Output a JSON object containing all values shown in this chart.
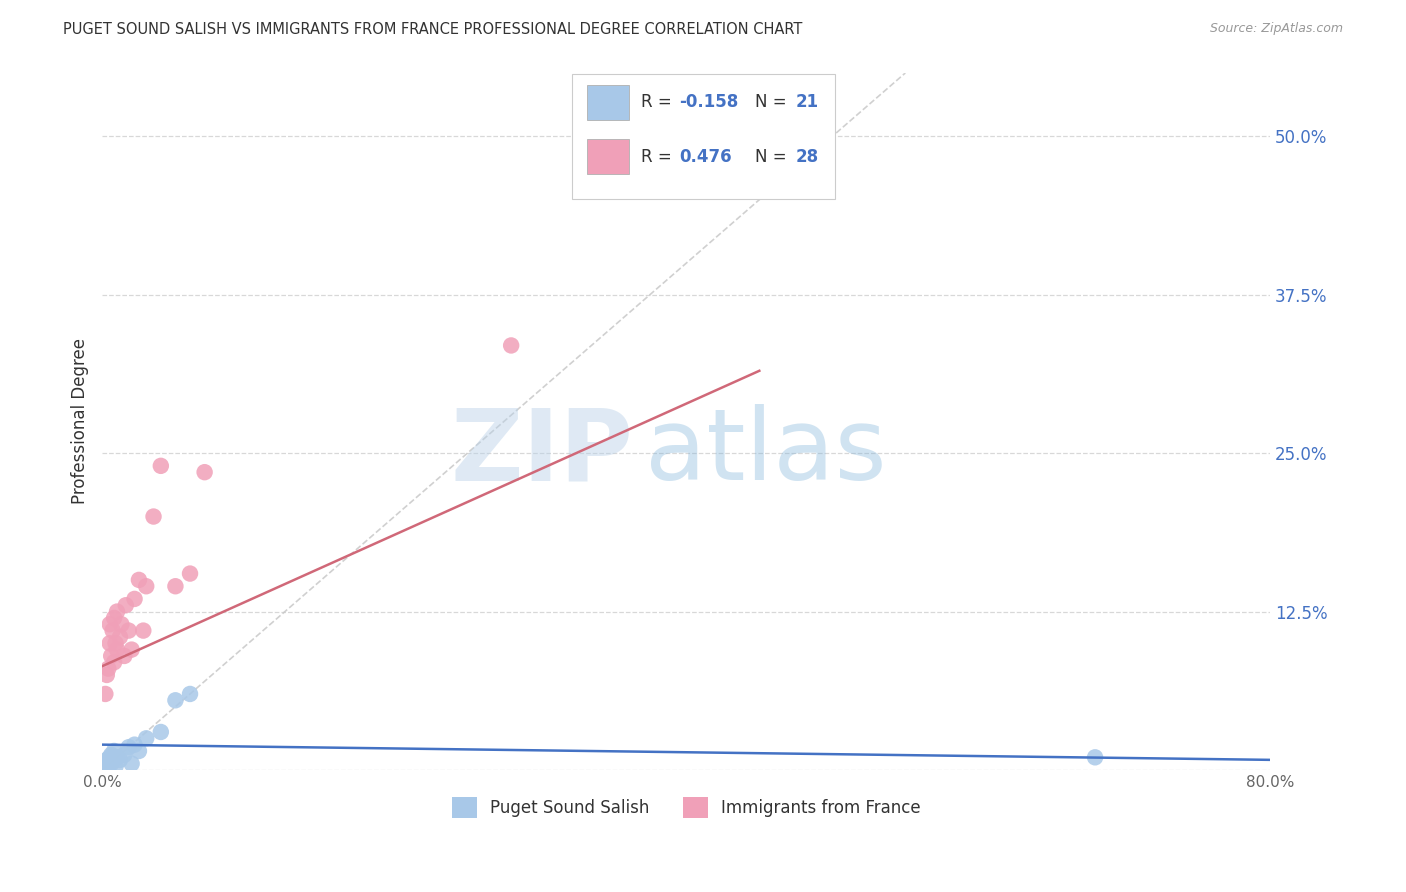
{
  "title": "PUGET SOUND SALISH VS IMMIGRANTS FROM FRANCE PROFESSIONAL DEGREE CORRELATION CHART",
  "source": "Source: ZipAtlas.com",
  "ylabel": "Professional Degree",
  "xlim": [
    0.0,
    0.8
  ],
  "ylim": [
    0.0,
    0.55
  ],
  "xtick_pos": [
    0.0,
    0.1,
    0.2,
    0.3,
    0.4,
    0.5,
    0.6,
    0.7,
    0.8
  ],
  "xtick_labels": [
    "0.0%",
    "",
    "",
    "",
    "",
    "",
    "",
    "",
    "80.0%"
  ],
  "ytick_positions": [
    0.0,
    0.125,
    0.25,
    0.375,
    0.5
  ],
  "ytick_labels_right": [
    "",
    "12.5%",
    "25.0%",
    "37.5%",
    "50.0%"
  ],
  "watermark_zip": "ZIP",
  "watermark_atlas": "atlas",
  "legend_r1": "-0.158",
  "legend_n1": "21",
  "legend_r2": "0.476",
  "legend_n2": "28",
  "color_blue": "#a8c8e8",
  "color_pink": "#f0a0b8",
  "line_blue": "#4472c4",
  "line_pink": "#d06878",
  "line_diag_color": "#c8c8c8",
  "grid_color": "#d8d8d8",
  "background": "#ffffff",
  "blue_x": [
    0.002,
    0.003,
    0.004,
    0.005,
    0.006,
    0.006,
    0.007,
    0.008,
    0.009,
    0.01,
    0.012,
    0.015,
    0.018,
    0.02,
    0.022,
    0.025,
    0.03,
    0.04,
    0.05,
    0.06,
    0.68
  ],
  "blue_y": [
    0.005,
    0.008,
    0.003,
    0.01,
    0.005,
    0.012,
    0.008,
    0.015,
    0.003,
    0.01,
    0.008,
    0.012,
    0.018,
    0.005,
    0.02,
    0.015,
    0.025,
    0.03,
    0.055,
    0.06,
    0.01
  ],
  "pink_x": [
    0.002,
    0.003,
    0.004,
    0.005,
    0.005,
    0.006,
    0.007,
    0.008,
    0.008,
    0.009,
    0.01,
    0.01,
    0.012,
    0.013,
    0.015,
    0.016,
    0.018,
    0.02,
    0.022,
    0.025,
    0.028,
    0.03,
    0.035,
    0.04,
    0.05,
    0.06,
    0.07,
    0.28
  ],
  "pink_y": [
    0.06,
    0.075,
    0.08,
    0.1,
    0.115,
    0.09,
    0.11,
    0.085,
    0.12,
    0.1,
    0.095,
    0.125,
    0.105,
    0.115,
    0.09,
    0.13,
    0.11,
    0.095,
    0.135,
    0.15,
    0.11,
    0.145,
    0.2,
    0.24,
    0.145,
    0.155,
    0.235,
    0.335
  ],
  "pink_line_x0": 0.0,
  "pink_line_y0": 0.082,
  "pink_line_x1": 0.45,
  "pink_line_y1": 0.315,
  "blue_line_x0": 0.0,
  "blue_line_y0": 0.02,
  "blue_line_x1": 0.8,
  "blue_line_y1": 0.008
}
